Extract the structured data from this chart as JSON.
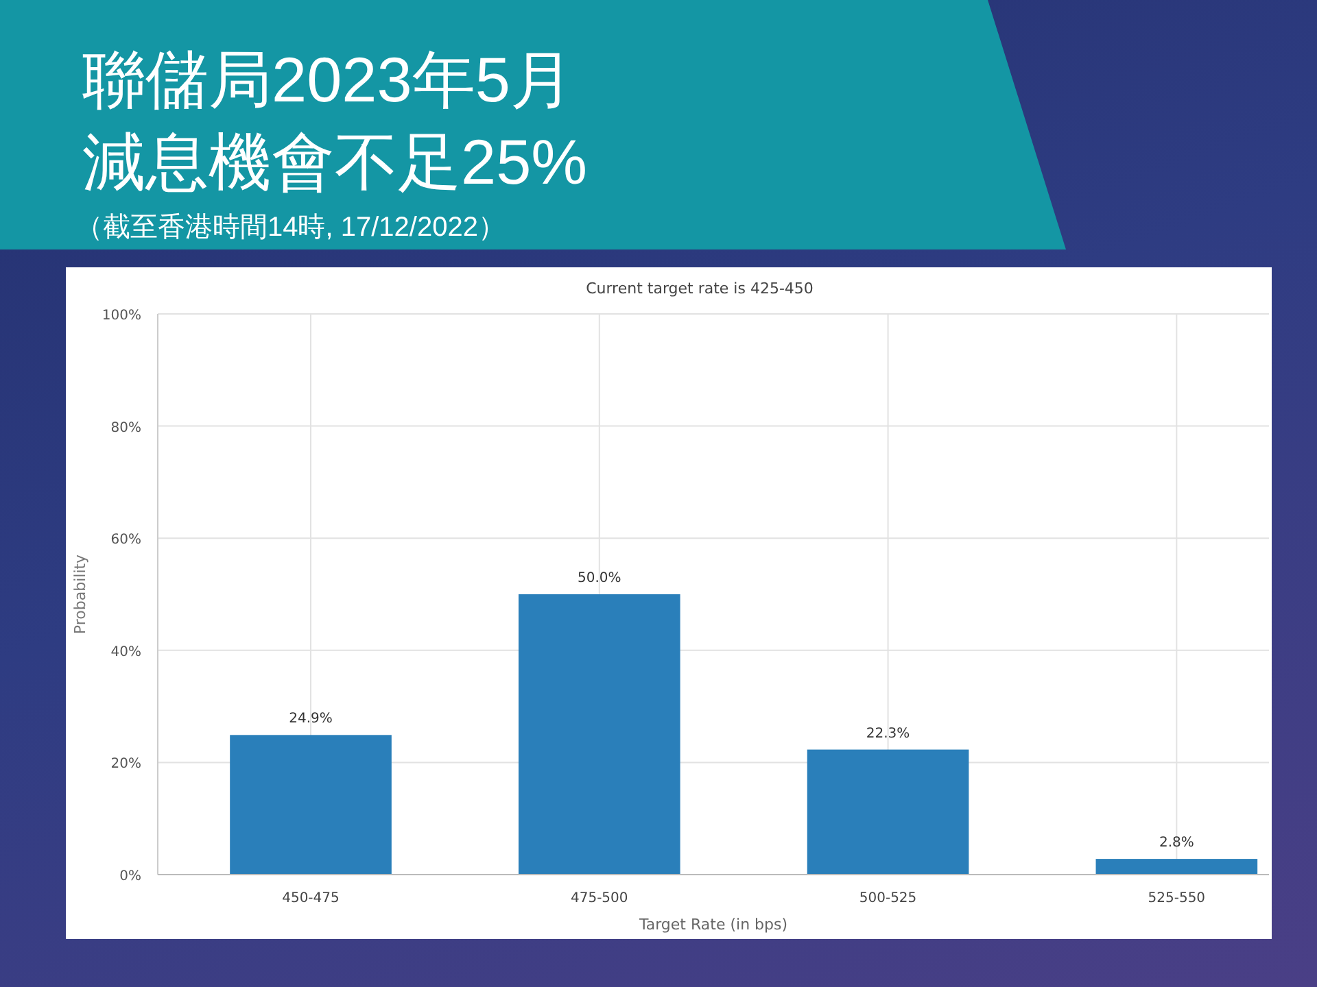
{
  "chart_data": {
    "type": "bar",
    "title": "聯儲局2023年5月減息機會不足25%",
    "subtitle": "Current target rate is 425-450",
    "xlabel": "Target Rate (in bps)",
    "ylabel": "Probability",
    "annotations": [
      "（截至香港時間14時, 17/12/2022）"
    ],
    "categories": [
      "450-475",
      "475-500",
      "500-525",
      "525-550"
    ],
    "values": [
      24.9,
      50.0,
      22.3,
      2.8
    ],
    "value_labels": [
      "24.9%",
      "50.0%",
      "22.3%",
      "2.8%"
    ],
    "color": "#2a7fba",
    "ylim": [
      0,
      100
    ],
    "yticks": [
      {
        "value": 0,
        "label": "0%"
      },
      {
        "value": 20,
        "label": "20%"
      },
      {
        "value": 40,
        "label": "40%"
      },
      {
        "value": 60,
        "label": "60%"
      },
      {
        "value": 80,
        "label": "80%"
      },
      {
        "value": 100,
        "label": "100%"
      }
    ],
    "grid": true
  }
}
